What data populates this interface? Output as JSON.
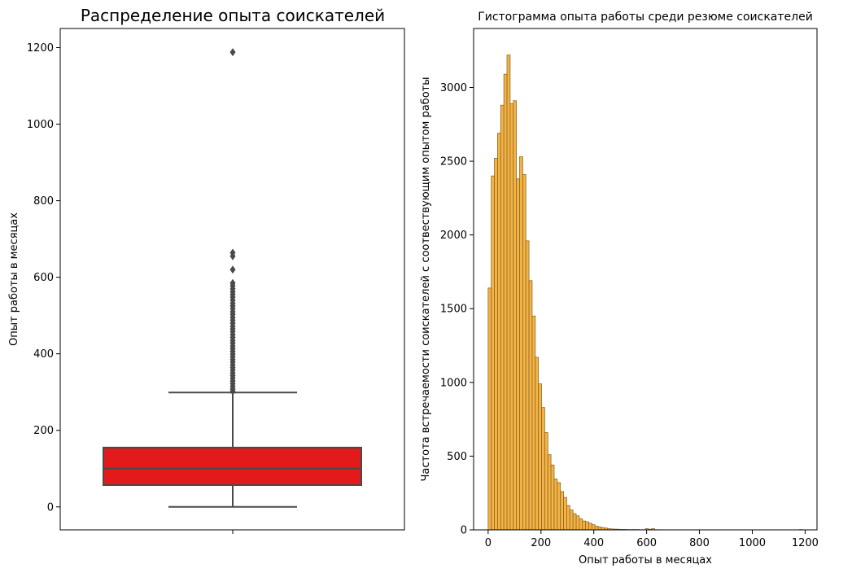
{
  "chart_data": [
    {
      "type": "box",
      "title": "Распределение опыта соискателей",
      "xlabel": "",
      "ylabel": "Опыт работы в месяцах",
      "ylim": [
        -60,
        1250
      ],
      "yticks": [
        0,
        200,
        400,
        600,
        800,
        1000,
        1200
      ],
      "box_color": "#e31a1c",
      "line_color": "#4a4a4a",
      "stats": {
        "min": 0,
        "q1": 57,
        "median": 100,
        "q3": 155,
        "whisker_high": 299
      },
      "outliers": [
        1188,
        664,
        655,
        620,
        585,
        578,
        570,
        562,
        555,
        548,
        540,
        532,
        525,
        518,
        510,
        503,
        495,
        488,
        480,
        472,
        465,
        458,
        450,
        443,
        435,
        428,
        420,
        413,
        406,
        399,
        392,
        385,
        378,
        371,
        364,
        357,
        350,
        343,
        336,
        329,
        322,
        315,
        308,
        302
      ]
    },
    {
      "type": "histogram",
      "title": "Гистограмма опыта работы среди резюме соискателей",
      "xlabel": "Опыт работы в месяцах",
      "ylabel": "Частота встречаемости соискателей с соотвествующим опытом работы",
      "xlim": [
        -55,
        1245
      ],
      "ylim": [
        0,
        3400
      ],
      "xticks": [
        0,
        200,
        400,
        600,
        800,
        1000,
        1200
      ],
      "yticks": [
        0,
        500,
        1000,
        1500,
        2000,
        2500,
        3000
      ],
      "bar_color": "#f5a623",
      "edge_color": "#8a6a2a",
      "bin_start": 0,
      "bin_width": 11.9,
      "counts": [
        1640,
        2400,
        2520,
        2690,
        2880,
        3090,
        3220,
        2890,
        2910,
        2380,
        2530,
        2410,
        1960,
        1690,
        1450,
        1170,
        990,
        830,
        660,
        510,
        440,
        345,
        320,
        260,
        220,
        165,
        135,
        110,
        95,
        75,
        60,
        55,
        45,
        35,
        25,
        20,
        15,
        12,
        8,
        6,
        5,
        4,
        3,
        3,
        2,
        2,
        2,
        2,
        1,
        1,
        8,
        4,
        8,
        1,
        1,
        0,
        0,
        0,
        0,
        0,
        0,
        0,
        0,
        0,
        0,
        0,
        0,
        0,
        0,
        0,
        0,
        0,
        0,
        0,
        0,
        0,
        0,
        0,
        0,
        0,
        0,
        0,
        0,
        0,
        0,
        0,
        0,
        0,
        0,
        0,
        0,
        0,
        0,
        0,
        0,
        0,
        0,
        0,
        0,
        2
      ]
    }
  ]
}
